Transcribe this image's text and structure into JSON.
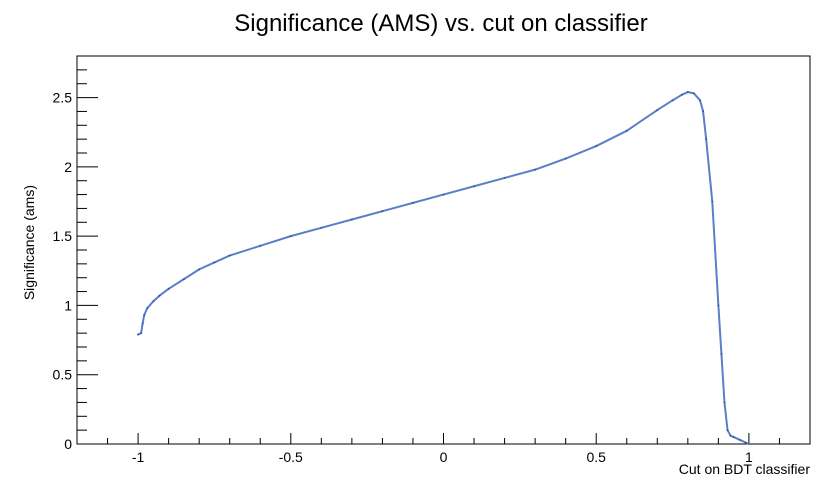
{
  "chart_data": {
    "type": "line",
    "title": "Significance (AMS) vs. cut on classifier",
    "xlabel": "Cut on BDT classifier",
    "ylabel": "Significance (ams)",
    "xlim": [
      -1.2,
      1.2
    ],
    "ylim": [
      0,
      2.8
    ],
    "x_ticks": [
      -1,
      -0.5,
      0,
      0.5,
      1
    ],
    "x_tick_labels": [
      "-1",
      "-0.5",
      "0",
      "0.5",
      "1"
    ],
    "y_ticks": [
      0,
      0.5,
      1,
      1.5,
      2,
      2.5
    ],
    "y_tick_labels": [
      "0",
      "0.5",
      "1",
      "1.5",
      "2",
      "2.5"
    ],
    "grid": false,
    "legend": "none",
    "color": "#5b7fc7",
    "series": [
      {
        "x": [
          -1.0,
          -0.99,
          -0.985,
          -0.98,
          -0.97,
          -0.95,
          -0.93,
          -0.9,
          -0.85,
          -0.8,
          -0.75,
          -0.7,
          -0.6,
          -0.5,
          -0.4,
          -0.3,
          -0.2,
          -0.1,
          0.0,
          0.1,
          0.2,
          0.3,
          0.4,
          0.5,
          0.6,
          0.7,
          0.75,
          0.78,
          0.8,
          0.82,
          0.84,
          0.85,
          0.86,
          0.88,
          0.9,
          0.91,
          0.92,
          0.93,
          0.94,
          0.95,
          0.97,
          0.99,
          1.0
        ],
        "y": [
          0.79,
          0.8,
          0.87,
          0.93,
          0.98,
          1.03,
          1.07,
          1.12,
          1.19,
          1.26,
          1.31,
          1.36,
          1.43,
          1.5,
          1.56,
          1.62,
          1.68,
          1.74,
          1.8,
          1.86,
          1.92,
          1.98,
          2.06,
          2.15,
          2.26,
          2.41,
          2.48,
          2.52,
          2.54,
          2.53,
          2.48,
          2.4,
          2.2,
          1.75,
          1.0,
          0.65,
          0.3,
          0.1,
          0.06,
          0.05,
          0.03,
          0.01,
          0.0
        ]
      }
    ]
  }
}
